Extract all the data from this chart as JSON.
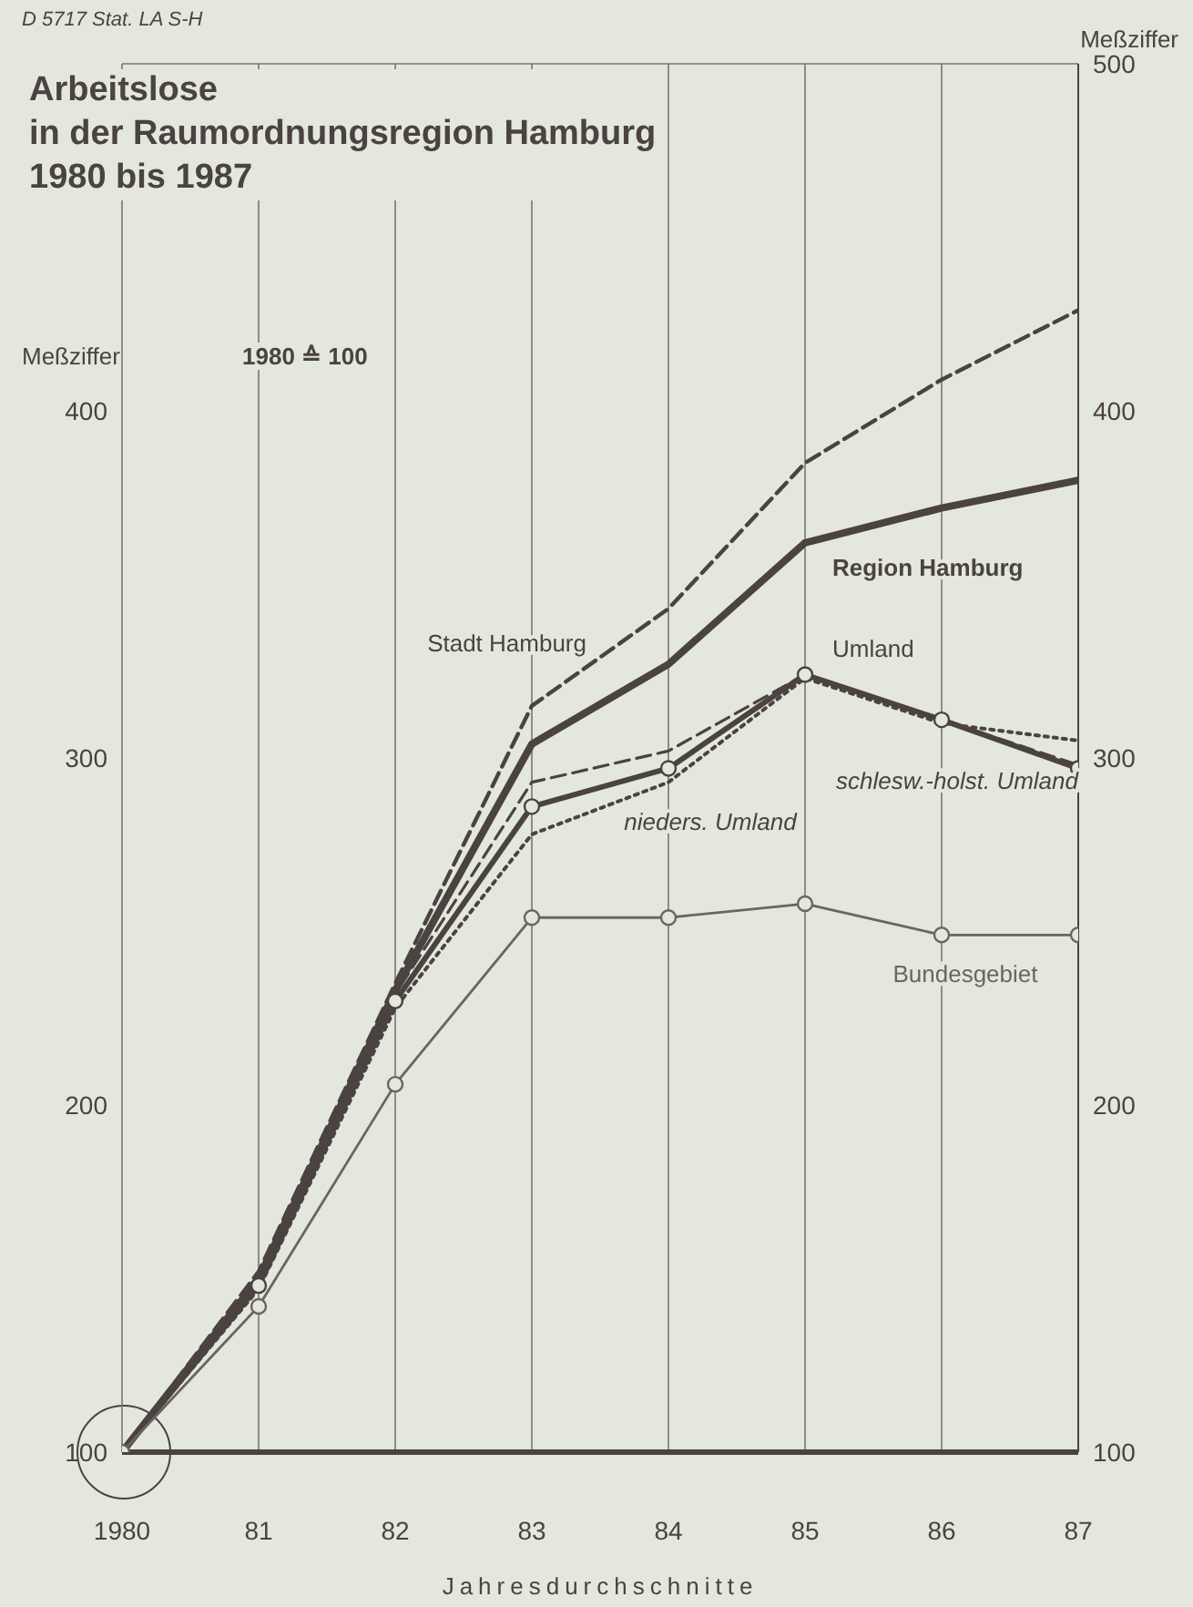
{
  "chart_data": {
    "type": "line",
    "title": "Arbeitslose\nin der Raumordnungsregion Hamburg\n1980 bis 1987",
    "xlabel": "Jahresdurchschnitte",
    "ylabel": "Meßziffer",
    "y2label": "Meßziffer",
    "annotations": [
      "D 5717   Stat. LA   S-H",
      "1980 ≙ 100"
    ],
    "x": [
      1980,
      1981,
      1982,
      1983,
      1984,
      1985,
      1986,
      1987
    ],
    "xlim": [
      1980,
      1987
    ],
    "xticks": [
      1980,
      {
        "value": 1981,
        "label": "81"
      },
      {
        "value": 1982,
        "label": "82"
      },
      {
        "value": 1983,
        "label": "83"
      },
      {
        "value": 1984,
        "label": "84"
      },
      {
        "value": 1985,
        "label": "85"
      },
      {
        "value": 1986,
        "label": "86"
      },
      {
        "value": 1987,
        "label": "87"
      }
    ],
    "ylim": [
      100,
      500
    ],
    "yticks": [
      100,
      200,
      300,
      400
    ],
    "y2lim": [
      100,
      500
    ],
    "y2ticks": [
      100,
      200,
      300,
      400,
      500
    ],
    "grid": true,
    "legend": false,
    "series": [
      {
        "name": "Stadt Hamburg",
        "color": "#4a4340",
        "line_style": "dashed",
        "marker": "none",
        "values": [
          100,
          152,
          235,
          315,
          343,
          385,
          409,
          429
        ]
      },
      {
        "name": "Region Hamburg",
        "color": "#4a4340",
        "line_style": "solid",
        "marker": "none",
        "values": [
          100,
          150,
          233,
          304,
          327,
          362,
          372,
          380
        ]
      },
      {
        "name": "Umland",
        "color": "#4a4340",
        "line_style": "solid",
        "marker": "circle",
        "values": [
          100,
          148,
          230,
          286,
          297,
          324,
          311,
          297
        ]
      },
      {
        "name": "schlesw.-holst. Umland",
        "color": "#4a4340",
        "line_style": "dashed",
        "marker": "none",
        "values": [
          100,
          149,
          232,
          293,
          302,
          324,
          311,
          298
        ]
      },
      {
        "name": "nieders. Umland",
        "color": "#4a4340",
        "line_style": "dotted",
        "marker": "none",
        "values": [
          100,
          147,
          228,
          278,
          293,
          323,
          310,
          305
        ]
      },
      {
        "name": "Bundesgebiet",
        "color": "#6b6560",
        "line_style": "solid",
        "marker": "circle",
        "values": [
          100,
          142,
          206,
          254,
          254,
          258,
          249,
          249
        ]
      }
    ]
  }
}
